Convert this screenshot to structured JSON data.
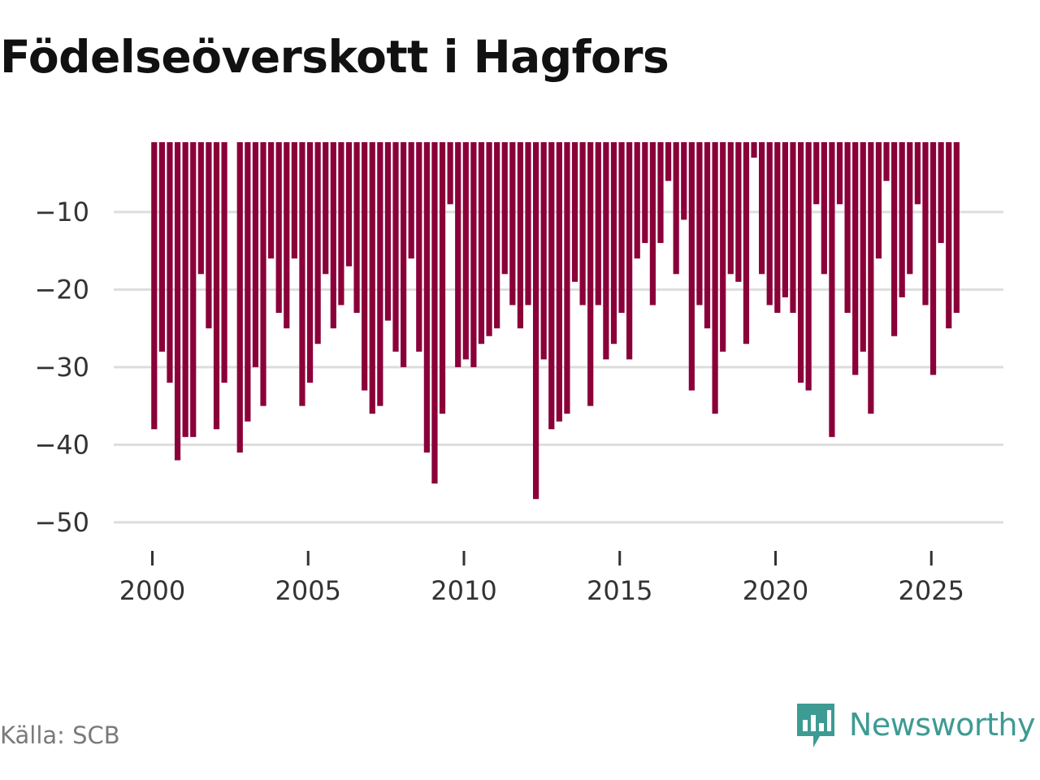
{
  "chart_data": {
    "type": "bar",
    "title": "Födelseöverskott i Hagfors",
    "xlabel": "",
    "ylabel": "",
    "xlim": [
      1999.0,
      2026.4
    ],
    "ylim": [
      -53,
      -1
    ],
    "yticks": [
      -10,
      -20,
      -30,
      -40,
      -50
    ],
    "ytick_labels": [
      "−10",
      "−20",
      "−30",
      "−40",
      "−50"
    ],
    "xticks": [
      2000,
      2005,
      2010,
      2015,
      2020,
      2025
    ],
    "xtick_labels": [
      "2000",
      "2005",
      "2010",
      "2015",
      "2020",
      "2025"
    ],
    "bar_color": "#8a0039",
    "grid": true,
    "series": [
      {
        "name": "Födelseöverskott",
        "x": [
          2000.0,
          2000.25,
          2000.5,
          2000.75,
          2001.0,
          2001.25,
          2001.5,
          2001.75,
          2002.0,
          2002.25,
          2002.5,
          2002.75,
          2003.0,
          2003.25,
          2003.5,
          2003.75,
          2004.0,
          2004.25,
          2004.5,
          2004.75,
          2005.0,
          2005.25,
          2005.5,
          2005.75,
          2006.0,
          2006.25,
          2006.5,
          2006.75,
          2007.0,
          2007.25,
          2007.5,
          2007.75,
          2008.0,
          2008.25,
          2008.5,
          2008.75,
          2009.0,
          2009.25,
          2009.5,
          2009.75,
          2010.0,
          2010.25,
          2010.5,
          2010.75,
          2011.0,
          2011.25,
          2011.5,
          2011.75,
          2012.0,
          2012.25,
          2012.5,
          2012.75,
          2013.0,
          2013.25,
          2013.5,
          2013.75,
          2014.0,
          2014.25,
          2014.5,
          2014.75,
          2015.0,
          2015.25,
          2015.5,
          2015.75,
          2016.0,
          2016.25,
          2016.5,
          2016.75,
          2017.0,
          2017.25,
          2017.5,
          2017.75,
          2018.0,
          2018.25,
          2018.5,
          2018.75,
          2019.0,
          2019.25,
          2019.5,
          2019.75,
          2020.0,
          2020.25,
          2020.5,
          2020.75,
          2021.0,
          2021.25,
          2021.5,
          2021.75,
          2022.0,
          2022.25,
          2022.5,
          2022.75,
          2023.0,
          2023.25,
          2023.5,
          2023.75,
          2024.0,
          2024.25,
          2024.5,
          2024.75,
          2025.0,
          2025.25,
          2025.5,
          2025.75
        ],
        "values": [
          -38,
          -28,
          -32,
          -42,
          -39,
          -39,
          -18,
          -25,
          -38,
          -32,
          null,
          -41,
          -37,
          -30,
          -35,
          -16,
          -23,
          -25,
          -16,
          -35,
          -32,
          -27,
          -18,
          -25,
          -22,
          -17,
          -23,
          -33,
          -36,
          -35,
          -24,
          -28,
          -30,
          -16,
          -28,
          -41,
          -45,
          -36,
          -9,
          -30,
          -29,
          -30,
          -27,
          -26,
          -25,
          -18,
          -22,
          -25,
          -22,
          -47,
          -29,
          -38,
          -37,
          -36,
          -19,
          -22,
          -35,
          -22,
          -29,
          -27,
          -23,
          -29,
          -16,
          -14,
          -22,
          -14,
          -6,
          -18,
          -11,
          -33,
          -22,
          -25,
          -36,
          -28,
          -18,
          -19,
          -27,
          -3,
          -18,
          -22,
          -23,
          -21,
          -23,
          -32,
          -33,
          -9,
          -18,
          -39,
          -9,
          -23,
          -31,
          -28,
          -36,
          -16,
          -6,
          -26,
          -21,
          -18,
          -9,
          -22,
          -31,
          -14,
          -25,
          -23
        ]
      }
    ]
  },
  "footer": {
    "source": "Källa: SCB",
    "brand": "Newsworthy"
  },
  "colors": {
    "bar": "#8a0039",
    "grid": "#dddddd",
    "brand": "#3d9b93"
  }
}
